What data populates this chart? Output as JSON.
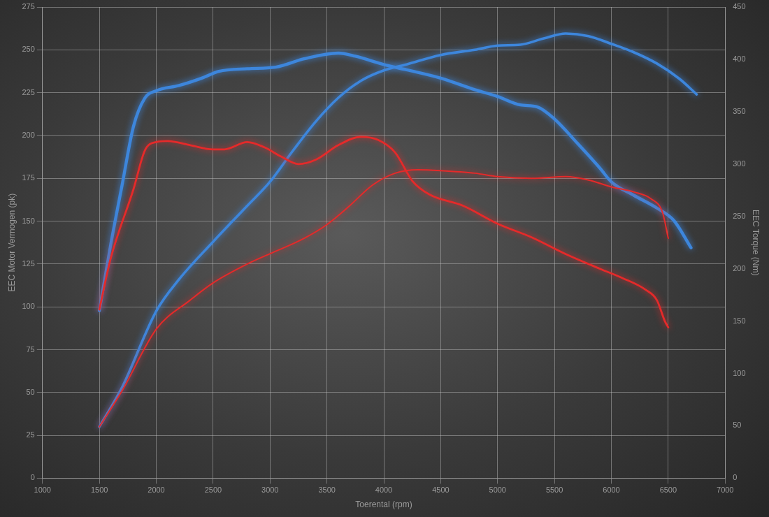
{
  "chart_data": {
    "type": "line",
    "xlabel": "Toerental (rpm)",
    "ylabel": "EEC Motor Vermogen (pk)",
    "y2label": "EEC Torque (Nm)",
    "xlim": [
      1000,
      7000
    ],
    "xticks": [
      1000,
      1500,
      2000,
      2500,
      3000,
      3500,
      4000,
      4500,
      5000,
      5500,
      6000,
      6500,
      7000
    ],
    "ylim": [
      0,
      275
    ],
    "yticks": [
      0,
      25,
      50,
      75,
      100,
      125,
      150,
      175,
      200,
      225,
      250,
      275
    ],
    "y2lim": [
      0,
      450
    ],
    "y2ticks": [
      0,
      50,
      100,
      150,
      200,
      250,
      300,
      350,
      400,
      450
    ],
    "grid": true,
    "legend": false,
    "series": [
      {
        "color": "#e52a2a",
        "axis": "y",
        "x": [
          1500,
          1700,
          2000,
          2300,
          2500,
          2800,
          3000,
          3300,
          3500,
          3700,
          3900,
          4100,
          4300,
          4500,
          4800,
          5000,
          5300,
          5600,
          5800,
          6000,
          6200,
          6350,
          6450,
          6500
        ],
        "values": [
          30,
          51,
          87,
          104,
          114,
          125,
          131,
          140,
          148,
          159,
          171,
          178,
          180,
          179.5,
          178,
          176,
          175,
          176,
          174,
          170,
          167,
          163,
          155,
          140
        ]
      },
      {
        "color": "#e52a2a",
        "axis": "y2",
        "x": [
          1500,
          1600,
          1800,
          1900,
          2000,
          2100,
          2300,
          2500,
          2600,
          2800,
          2950,
          3100,
          3250,
          3400,
          3600,
          3800,
          3950,
          4100,
          4250,
          4400,
          4700,
          5000,
          5300,
          5600,
          5900,
          6100,
          6300,
          6400,
          6470,
          6500
        ],
        "values": [
          161,
          210,
          276,
          313,
          321,
          322,
          318,
          314,
          314,
          321,
          316,
          307,
          300,
          304,
          318,
          326,
          323,
          311,
          284,
          271,
          260,
          243,
          230,
          214,
          200,
          191,
          180,
          170,
          150,
          144
        ]
      },
      {
        "color": "#3d86dc",
        "axis": "y",
        "x": [
          1500,
          1700,
          2000,
          2200,
          2500,
          2800,
          3000,
          3200,
          3400,
          3600,
          3800,
          4000,
          4200,
          4500,
          4800,
          5000,
          5200,
          5400,
          5600,
          5800,
          6000,
          6200,
          6400,
          6600,
          6750
        ],
        "values": [
          30,
          53,
          97.5,
          116,
          138,
          159,
          173,
          191,
          208,
          222,
          232,
          238,
          241.5,
          247,
          250,
          252.5,
          253,
          256.5,
          259.5,
          258,
          253.5,
          248.5,
          242,
          233,
          224
        ]
      },
      {
        "color": "#3d86dc",
        "axis": "y2",
        "x": [
          1500,
          1600,
          1700,
          1800,
          1900,
          2000,
          2200,
          2400,
          2550,
          2800,
          3050,
          3300,
          3600,
          3750,
          4000,
          4200,
          4500,
          4800,
          5000,
          5200,
          5350,
          5500,
          5700,
          5900,
          6000,
          6200,
          6400,
          6550,
          6700
        ],
        "values": [
          160,
          223,
          280,
          336,
          363,
          370,
          375,
          382,
          388.5,
          391,
          392.5,
          400.5,
          406,
          403,
          395,
          390,
          382,
          371,
          364.5,
          356.5,
          354.5,
          343,
          320,
          296,
          283,
          270,
          258,
          246,
          220
        ]
      }
    ]
  }
}
